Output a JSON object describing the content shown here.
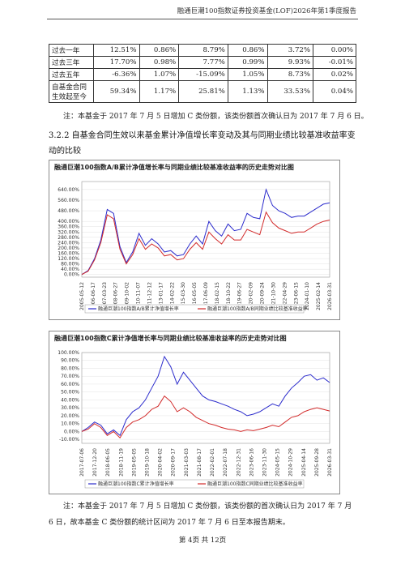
{
  "header": {
    "title": "融通巨潮100指数证券投资基金(LOF)2026年第1季度报告"
  },
  "table": {
    "rows": [
      {
        "label": "过去一年",
        "cells": [
          "12.51%",
          "0.86%",
          "8.79%",
          "0.86%",
          "3.72%",
          "0.00%"
        ]
      },
      {
        "label": "过去三年",
        "cells": [
          "17.70%",
          "0.98%",
          "7.77%",
          "0.99%",
          "9.93%",
          "-0.01%"
        ]
      },
      {
        "label": "过去五年",
        "cells": [
          "-6.36%",
          "1.07%",
          "-15.09%",
          "1.05%",
          "8.73%",
          "0.02%"
        ]
      },
      {
        "label": "自基金合同生效起至今",
        "cells": [
          "59.34%",
          "1.17%",
          "25.81%",
          "1.13%",
          "33.53%",
          "0.04%"
        ]
      }
    ]
  },
  "note1": "注：本基金于 2017 年 7 月 5 日增加 C 类份额，该类份额首次确认日为 2017 年 7 月 6 日。",
  "section_heading": "3.2.2 自基金合同生效以来基金累计净值增长率变动及其与同期业绩比较基准收益率变动的比较",
  "chart_data": [
    {
      "type": "line",
      "title": "融通巨潮100指数A/B累计净值增长率与同期业绩比较基准收益率的历史走势对比图",
      "ylim": [
        -20,
        700
      ],
      "yticks": [
        "0.00%",
        "40.00%",
        "80.00%",
        "120.00%",
        "160.00%",
        "200.00%",
        "240.00%",
        "280.00%",
        "320.00%",
        "360.00%",
        "400.00%",
        "480.00%",
        "560.00%",
        "640.00%"
      ],
      "yticks_shown": [
        "640.00%",
        "560.00%",
        "480.00%",
        "400.00%",
        "360.00%",
        "320.00%",
        "280.00%",
        "240.00%",
        "200.00%",
        "160.00%",
        "120.00%",
        "80.00%",
        "40.00%",
        "0.00%"
      ],
      "x_labels": [
        "2005-05-12",
        "2006-06-17",
        "2007-03-23",
        "2008-06-27",
        "2009-10-02",
        "2010-11-07",
        "2011-12-12",
        "2013-01-17",
        "2014-02-22",
        "2015-03-30",
        "2016-05-05",
        "2017-06-09",
        "2018-02-15",
        "2018-10-22",
        "2019-06-27",
        "2020-02-09",
        "2020-09-24",
        "2021-10-30",
        "2022-04-29",
        "2023-06-15",
        "2024-01-10",
        "2025-02-14",
        "2026-03-31"
      ],
      "series": [
        {
          "name": "融通巨潮100指数A/B累计净值增长率",
          "color": "#2b2bcc",
          "values": [
            0,
            30,
            120,
            260,
            490,
            460,
            210,
            90,
            170,
            310,
            220,
            270,
            230,
            170,
            180,
            140,
            150,
            230,
            290,
            230,
            400,
            330,
            290,
            380,
            330,
            340,
            460,
            430,
            420,
            640,
            520,
            480,
            460,
            430,
            440,
            440,
            470,
            500,
            530,
            540
          ]
        },
        {
          "name": "融通巨潮100指数A/B同期业绩比较基准收益率",
          "color": "#d22a2a",
          "values": [
            0,
            25,
            110,
            240,
            450,
            420,
            190,
            80,
            150,
            270,
            190,
            230,
            200,
            140,
            150,
            110,
            120,
            190,
            240,
            190,
            320,
            270,
            230,
            300,
            260,
            260,
            340,
            320,
            300,
            470,
            390,
            350,
            330,
            310,
            320,
            320,
            350,
            380,
            400,
            410
          ]
        }
      ]
    },
    {
      "type": "line",
      "title": "融通巨潮100指数C累计净值增长率与同期业绩比较基准收益率的历史走势对比图",
      "ylim": [
        -15,
        100
      ],
      "yticks_shown": [
        "100.00%",
        "90.00%",
        "80.00%",
        "70.00%",
        "60.00%",
        "50.00%",
        "40.00%",
        "30.00%",
        "20.00%",
        "10.00%",
        "0.00%",
        "-10.00%"
      ],
      "x_labels": [
        "2017-07-06",
        "2017-12-20",
        "2018-06-05",
        "2018-11-19",
        "2019-05-05",
        "2019-10-18",
        "2020-04-02",
        "2020-09-17",
        "2021-03-03",
        "2021-08-17",
        "2022-02-01",
        "2022-07-18",
        "2022-12-31",
        "2023-06-16",
        "2023-11-30",
        "2024-05-15",
        "2024-10-29",
        "2025-04-14",
        "2025-09-28",
        "2026-03-31"
      ],
      "series": [
        {
          "name": "融通巨潮100指数C累计净值增长率",
          "color": "#2b2bcc",
          "values": [
            0,
            5,
            12,
            8,
            -3,
            2,
            -5,
            15,
            25,
            30,
            40,
            55,
            70,
            95,
            82,
            60,
            75,
            65,
            55,
            45,
            40,
            38,
            35,
            32,
            28,
            25,
            20,
            22,
            25,
            30,
            35,
            32,
            45,
            55,
            62,
            70,
            72,
            65,
            68,
            62
          ]
        },
        {
          "name": "融通巨潮100指数C同期业绩比较基准收益率",
          "color": "#d22a2a",
          "values": [
            0,
            3,
            10,
            5,
            -5,
            0,
            -8,
            5,
            12,
            15,
            20,
            28,
            32,
            45,
            38,
            25,
            30,
            25,
            18,
            14,
            10,
            8,
            5,
            3,
            2,
            0,
            2,
            1,
            3,
            5,
            8,
            6,
            12,
            18,
            20,
            25,
            28,
            30,
            28,
            26
          ]
        }
      ]
    }
  ],
  "note2": "注：本基金于 2017 年 7 月 5 日增加 C 类份额，该类份额的首次确认日为 2017 年 7 月 6 日，故本基金 C 类份额的统计区间为 2017 年 7 月 6 日至本报告期末。",
  "page_number": "第 4页 共 12页"
}
